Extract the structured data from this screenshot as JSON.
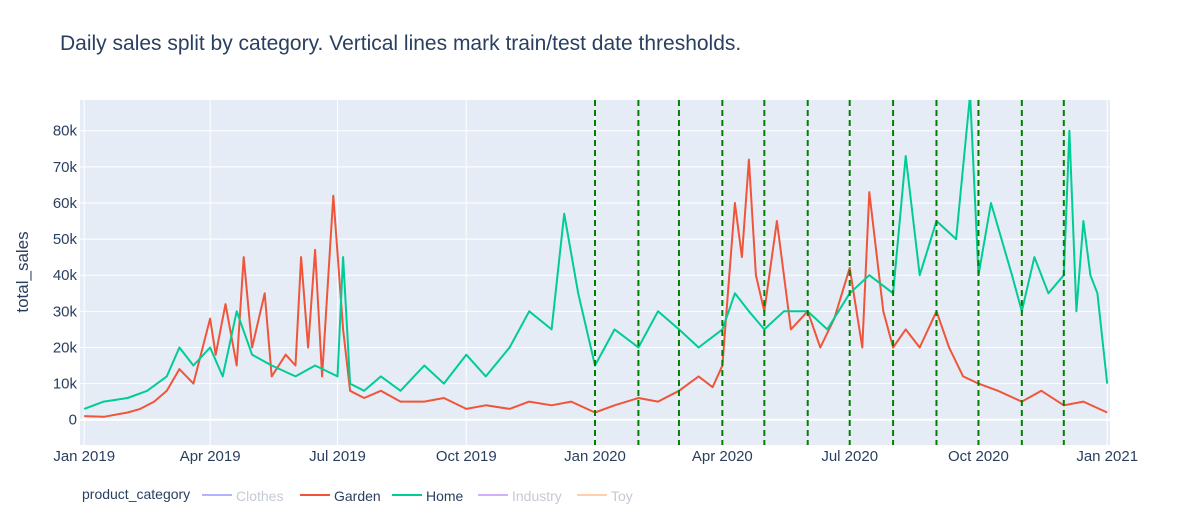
{
  "chart_data": {
    "type": "line",
    "title": "Daily sales split by category. Vertical lines mark train/test date thresholds.",
    "xlabel": "",
    "ylabel": "total_sales",
    "xlim": [
      "2018-12-29",
      "2021-01-03"
    ],
    "ylim": [
      -7000,
      88500
    ],
    "x_ticks": [
      {
        "date": "2019-01-01",
        "label": "Jan 2019"
      },
      {
        "date": "2019-04-01",
        "label": "Apr 2019"
      },
      {
        "date": "2019-07-01",
        "label": "Jul 2019"
      },
      {
        "date": "2019-10-01",
        "label": "Oct 2019"
      },
      {
        "date": "2020-01-01",
        "label": "Jan 2020"
      },
      {
        "date": "2020-04-01",
        "label": "Apr 2020"
      },
      {
        "date": "2020-07-01",
        "label": "Jul 2020"
      },
      {
        "date": "2020-10-01",
        "label": "Oct 2020"
      },
      {
        "date": "2021-01-01",
        "label": "Jan 2021"
      }
    ],
    "y_ticks": [
      {
        "value": 0,
        "label": "0"
      },
      {
        "value": 10000,
        "label": "10k"
      },
      {
        "value": 20000,
        "label": "20k"
      },
      {
        "value": 30000,
        "label": "30k"
      },
      {
        "value": 40000,
        "label": "40k"
      },
      {
        "value": 50000,
        "label": "50k"
      },
      {
        "value": 60000,
        "label": "60k"
      },
      {
        "value": 70000,
        "label": "70k"
      },
      {
        "value": 80000,
        "label": "80k"
      }
    ],
    "grid": true,
    "threshold_dates": [
      "2020-01-01",
      "2020-02-01",
      "2020-03-01",
      "2020-04-01",
      "2020-05-01",
      "2020-06-01",
      "2020-07-01",
      "2020-08-01",
      "2020-09-01",
      "2020-10-01",
      "2020-11-01",
      "2020-12-01"
    ],
    "threshold_color": "#008000",
    "legend": {
      "title": "product_category",
      "placement": "bottom-left",
      "items": [
        {
          "name": "Clothes",
          "color": "#636efa",
          "visible": false
        },
        {
          "name": "Garden",
          "color": "#EF553B",
          "visible": true
        },
        {
          "name": "Home",
          "color": "#00cc96",
          "visible": true
        },
        {
          "name": "Industry",
          "color": "#ab63fa",
          "visible": false
        },
        {
          "name": "Toy",
          "color": "#FFA15A",
          "visible": false
        }
      ]
    },
    "series": [
      {
        "name": "Garden",
        "color": "#EF553B",
        "points": [
          [
            "2019-01-01",
            1000
          ],
          [
            "2019-01-15",
            800
          ],
          [
            "2019-02-01",
            2000
          ],
          [
            "2019-02-10",
            3000
          ],
          [
            "2019-02-20",
            5000
          ],
          [
            "2019-03-01",
            8000
          ],
          [
            "2019-03-10",
            14000
          ],
          [
            "2019-03-20",
            10000
          ],
          [
            "2019-04-01",
            28000
          ],
          [
            "2019-04-05",
            18000
          ],
          [
            "2019-04-12",
            32000
          ],
          [
            "2019-04-20",
            15000
          ],
          [
            "2019-04-25",
            45000
          ],
          [
            "2019-05-01",
            20000
          ],
          [
            "2019-05-10",
            35000
          ],
          [
            "2019-05-15",
            12000
          ],
          [
            "2019-05-25",
            18000
          ],
          [
            "2019-06-01",
            15000
          ],
          [
            "2019-06-05",
            45000
          ],
          [
            "2019-06-10",
            20000
          ],
          [
            "2019-06-15",
            47000
          ],
          [
            "2019-06-20",
            12000
          ],
          [
            "2019-06-28",
            62000
          ],
          [
            "2019-07-05",
            25000
          ],
          [
            "2019-07-10",
            8000
          ],
          [
            "2019-07-20",
            6000
          ],
          [
            "2019-08-01",
            8000
          ],
          [
            "2019-08-15",
            5000
          ],
          [
            "2019-09-01",
            5000
          ],
          [
            "2019-09-15",
            6000
          ],
          [
            "2019-10-01",
            3000
          ],
          [
            "2019-10-15",
            4000
          ],
          [
            "2019-11-01",
            3000
          ],
          [
            "2019-11-15",
            5000
          ],
          [
            "2019-12-01",
            4000
          ],
          [
            "2019-12-15",
            5000
          ],
          [
            "2020-01-01",
            2000
          ],
          [
            "2020-01-15",
            4000
          ],
          [
            "2020-02-01",
            6000
          ],
          [
            "2020-02-15",
            5000
          ],
          [
            "2020-03-01",
            8000
          ],
          [
            "2020-03-15",
            12000
          ],
          [
            "2020-03-25",
            9000
          ],
          [
            "2020-04-01",
            15000
          ],
          [
            "2020-04-05",
            35000
          ],
          [
            "2020-04-10",
            60000
          ],
          [
            "2020-04-15",
            45000
          ],
          [
            "2020-04-20",
            72000
          ],
          [
            "2020-04-25",
            40000
          ],
          [
            "2020-05-01",
            30000
          ],
          [
            "2020-05-10",
            55000
          ],
          [
            "2020-05-20",
            25000
          ],
          [
            "2020-06-01",
            30000
          ],
          [
            "2020-06-10",
            20000
          ],
          [
            "2020-06-20",
            28000
          ],
          [
            "2020-07-01",
            42000
          ],
          [
            "2020-07-10",
            20000
          ],
          [
            "2020-07-15",
            63000
          ],
          [
            "2020-07-25",
            30000
          ],
          [
            "2020-08-01",
            20000
          ],
          [
            "2020-08-10",
            25000
          ],
          [
            "2020-08-20",
            20000
          ],
          [
            "2020-09-01",
            30000
          ],
          [
            "2020-09-10",
            20000
          ],
          [
            "2020-09-20",
            12000
          ],
          [
            "2020-10-01",
            10000
          ],
          [
            "2020-10-15",
            8000
          ],
          [
            "2020-11-01",
            5000
          ],
          [
            "2020-11-15",
            8000
          ],
          [
            "2020-12-01",
            4000
          ],
          [
            "2020-12-15",
            5000
          ],
          [
            "2021-01-01",
            2000
          ]
        ]
      },
      {
        "name": "Home",
        "color": "#00cc96",
        "points": [
          [
            "2019-01-01",
            3000
          ],
          [
            "2019-01-15",
            5000
          ],
          [
            "2019-02-01",
            6000
          ],
          [
            "2019-02-15",
            8000
          ],
          [
            "2019-03-01",
            12000
          ],
          [
            "2019-03-10",
            20000
          ],
          [
            "2019-03-20",
            15000
          ],
          [
            "2019-04-01",
            20000
          ],
          [
            "2019-04-10",
            12000
          ],
          [
            "2019-04-20",
            30000
          ],
          [
            "2019-05-01",
            18000
          ],
          [
            "2019-05-15",
            15000
          ],
          [
            "2019-06-01",
            12000
          ],
          [
            "2019-06-15",
            15000
          ],
          [
            "2019-07-01",
            12000
          ],
          [
            "2019-07-05",
            45000
          ],
          [
            "2019-07-10",
            10000
          ],
          [
            "2019-07-20",
            8000
          ],
          [
            "2019-08-01",
            12000
          ],
          [
            "2019-08-15",
            8000
          ],
          [
            "2019-09-01",
            15000
          ],
          [
            "2019-09-15",
            10000
          ],
          [
            "2019-10-01",
            18000
          ],
          [
            "2019-10-15",
            12000
          ],
          [
            "2019-11-01",
            20000
          ],
          [
            "2019-11-15",
            30000
          ],
          [
            "2019-12-01",
            25000
          ],
          [
            "2019-12-10",
            57000
          ],
          [
            "2019-12-20",
            35000
          ],
          [
            "2020-01-01",
            15000
          ],
          [
            "2020-01-15",
            25000
          ],
          [
            "2020-02-01",
            20000
          ],
          [
            "2020-02-15",
            30000
          ],
          [
            "2020-03-01",
            25000
          ],
          [
            "2020-03-15",
            20000
          ],
          [
            "2020-04-01",
            25000
          ],
          [
            "2020-04-10",
            35000
          ],
          [
            "2020-04-20",
            30000
          ],
          [
            "2020-05-01",
            25000
          ],
          [
            "2020-05-15",
            30000
          ],
          [
            "2020-06-01",
            30000
          ],
          [
            "2020-06-15",
            25000
          ],
          [
            "2020-07-01",
            35000
          ],
          [
            "2020-07-15",
            40000
          ],
          [
            "2020-08-01",
            35000
          ],
          [
            "2020-08-10",
            73000
          ],
          [
            "2020-08-20",
            40000
          ],
          [
            "2020-09-01",
            55000
          ],
          [
            "2020-09-15",
            50000
          ],
          [
            "2020-09-25",
            90000
          ],
          [
            "2020-10-01",
            40000
          ],
          [
            "2020-10-10",
            60000
          ],
          [
            "2020-10-25",
            40000
          ],
          [
            "2020-11-01",
            30000
          ],
          [
            "2020-11-10",
            45000
          ],
          [
            "2020-11-20",
            35000
          ],
          [
            "2020-12-01",
            40000
          ],
          [
            "2020-12-05",
            80000
          ],
          [
            "2020-12-10",
            30000
          ],
          [
            "2020-12-15",
            55000
          ],
          [
            "2020-12-20",
            40000
          ],
          [
            "2020-12-25",
            35000
          ],
          [
            "2021-01-01",
            10000
          ]
        ]
      }
    ]
  }
}
